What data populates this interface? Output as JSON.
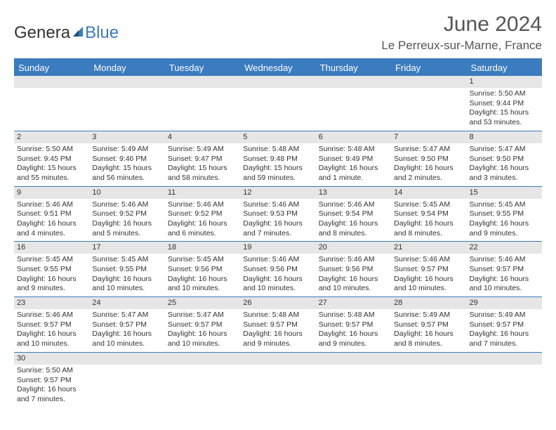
{
  "logo": {
    "part1": "Genera",
    "part2": "Blue"
  },
  "title": "June 2024",
  "location": "Le Perreux-sur-Marne, France",
  "colors": {
    "header_bg": "#3b7bbf",
    "header_text": "#ffffff",
    "daynum_bg": "#e6e6e6",
    "border": "#3b7bbf",
    "text": "#333333",
    "title_text": "#555555"
  },
  "weekdays": [
    "Sunday",
    "Monday",
    "Tuesday",
    "Wednesday",
    "Thursday",
    "Friday",
    "Saturday"
  ],
  "weeks": [
    [
      {
        "day": "",
        "lines": []
      },
      {
        "day": "",
        "lines": []
      },
      {
        "day": "",
        "lines": []
      },
      {
        "day": "",
        "lines": []
      },
      {
        "day": "",
        "lines": []
      },
      {
        "day": "",
        "lines": []
      },
      {
        "day": "1",
        "lines": [
          "Sunrise: 5:50 AM",
          "Sunset: 9:44 PM",
          "Daylight: 15 hours",
          "and 53 minutes."
        ]
      }
    ],
    [
      {
        "day": "2",
        "lines": [
          "Sunrise: 5:50 AM",
          "Sunset: 9:45 PM",
          "Daylight: 15 hours",
          "and 55 minutes."
        ]
      },
      {
        "day": "3",
        "lines": [
          "Sunrise: 5:49 AM",
          "Sunset: 9:46 PM",
          "Daylight: 15 hours",
          "and 56 minutes."
        ]
      },
      {
        "day": "4",
        "lines": [
          "Sunrise: 5:49 AM",
          "Sunset: 9:47 PM",
          "Daylight: 15 hours",
          "and 58 minutes."
        ]
      },
      {
        "day": "5",
        "lines": [
          "Sunrise: 5:48 AM",
          "Sunset: 9:48 PM",
          "Daylight: 15 hours",
          "and 59 minutes."
        ]
      },
      {
        "day": "6",
        "lines": [
          "Sunrise: 5:48 AM",
          "Sunset: 9:49 PM",
          "Daylight: 16 hours",
          "and 1 minute."
        ]
      },
      {
        "day": "7",
        "lines": [
          "Sunrise: 5:47 AM",
          "Sunset: 9:50 PM",
          "Daylight: 16 hours",
          "and 2 minutes."
        ]
      },
      {
        "day": "8",
        "lines": [
          "Sunrise: 5:47 AM",
          "Sunset: 9:50 PM",
          "Daylight: 16 hours",
          "and 3 minutes."
        ]
      }
    ],
    [
      {
        "day": "9",
        "lines": [
          "Sunrise: 5:46 AM",
          "Sunset: 9:51 PM",
          "Daylight: 16 hours",
          "and 4 minutes."
        ]
      },
      {
        "day": "10",
        "lines": [
          "Sunrise: 5:46 AM",
          "Sunset: 9:52 PM",
          "Daylight: 16 hours",
          "and 5 minutes."
        ]
      },
      {
        "day": "11",
        "lines": [
          "Sunrise: 5:46 AM",
          "Sunset: 9:52 PM",
          "Daylight: 16 hours",
          "and 6 minutes."
        ]
      },
      {
        "day": "12",
        "lines": [
          "Sunrise: 5:46 AM",
          "Sunset: 9:53 PM",
          "Daylight: 16 hours",
          "and 7 minutes."
        ]
      },
      {
        "day": "13",
        "lines": [
          "Sunrise: 5:46 AM",
          "Sunset: 9:54 PM",
          "Daylight: 16 hours",
          "and 8 minutes."
        ]
      },
      {
        "day": "14",
        "lines": [
          "Sunrise: 5:45 AM",
          "Sunset: 9:54 PM",
          "Daylight: 16 hours",
          "and 8 minutes."
        ]
      },
      {
        "day": "15",
        "lines": [
          "Sunrise: 5:45 AM",
          "Sunset: 9:55 PM",
          "Daylight: 16 hours",
          "and 9 minutes."
        ]
      }
    ],
    [
      {
        "day": "16",
        "lines": [
          "Sunrise: 5:45 AM",
          "Sunset: 9:55 PM",
          "Daylight: 16 hours",
          "and 9 minutes."
        ]
      },
      {
        "day": "17",
        "lines": [
          "Sunrise: 5:45 AM",
          "Sunset: 9:55 PM",
          "Daylight: 16 hours",
          "and 10 minutes."
        ]
      },
      {
        "day": "18",
        "lines": [
          "Sunrise: 5:45 AM",
          "Sunset: 9:56 PM",
          "Daylight: 16 hours",
          "and 10 minutes."
        ]
      },
      {
        "day": "19",
        "lines": [
          "Sunrise: 5:46 AM",
          "Sunset: 9:56 PM",
          "Daylight: 16 hours",
          "and 10 minutes."
        ]
      },
      {
        "day": "20",
        "lines": [
          "Sunrise: 5:46 AM",
          "Sunset: 9:56 PM",
          "Daylight: 16 hours",
          "and 10 minutes."
        ]
      },
      {
        "day": "21",
        "lines": [
          "Sunrise: 5:46 AM",
          "Sunset: 9:57 PM",
          "Daylight: 16 hours",
          "and 10 minutes."
        ]
      },
      {
        "day": "22",
        "lines": [
          "Sunrise: 5:46 AM",
          "Sunset: 9:57 PM",
          "Daylight: 16 hours",
          "and 10 minutes."
        ]
      }
    ],
    [
      {
        "day": "23",
        "lines": [
          "Sunrise: 5:46 AM",
          "Sunset: 9:57 PM",
          "Daylight: 16 hours",
          "and 10 minutes."
        ]
      },
      {
        "day": "24",
        "lines": [
          "Sunrise: 5:47 AM",
          "Sunset: 9:57 PM",
          "Daylight: 16 hours",
          "and 10 minutes."
        ]
      },
      {
        "day": "25",
        "lines": [
          "Sunrise: 5:47 AM",
          "Sunset: 9:57 PM",
          "Daylight: 16 hours",
          "and 10 minutes."
        ]
      },
      {
        "day": "26",
        "lines": [
          "Sunrise: 5:48 AM",
          "Sunset: 9:57 PM",
          "Daylight: 16 hours",
          "and 9 minutes."
        ]
      },
      {
        "day": "27",
        "lines": [
          "Sunrise: 5:48 AM",
          "Sunset: 9:57 PM",
          "Daylight: 16 hours",
          "and 9 minutes."
        ]
      },
      {
        "day": "28",
        "lines": [
          "Sunrise: 5:49 AM",
          "Sunset: 9:57 PM",
          "Daylight: 16 hours",
          "and 8 minutes."
        ]
      },
      {
        "day": "29",
        "lines": [
          "Sunrise: 5:49 AM",
          "Sunset: 9:57 PM",
          "Daylight: 16 hours",
          "and 7 minutes."
        ]
      }
    ],
    [
      {
        "day": "30",
        "lines": [
          "Sunrise: 5:50 AM",
          "Sunset: 9:57 PM",
          "Daylight: 16 hours",
          "and 7 minutes."
        ]
      },
      {
        "day": "",
        "lines": []
      },
      {
        "day": "",
        "lines": []
      },
      {
        "day": "",
        "lines": []
      },
      {
        "day": "",
        "lines": []
      },
      {
        "day": "",
        "lines": []
      },
      {
        "day": "",
        "lines": []
      }
    ]
  ]
}
